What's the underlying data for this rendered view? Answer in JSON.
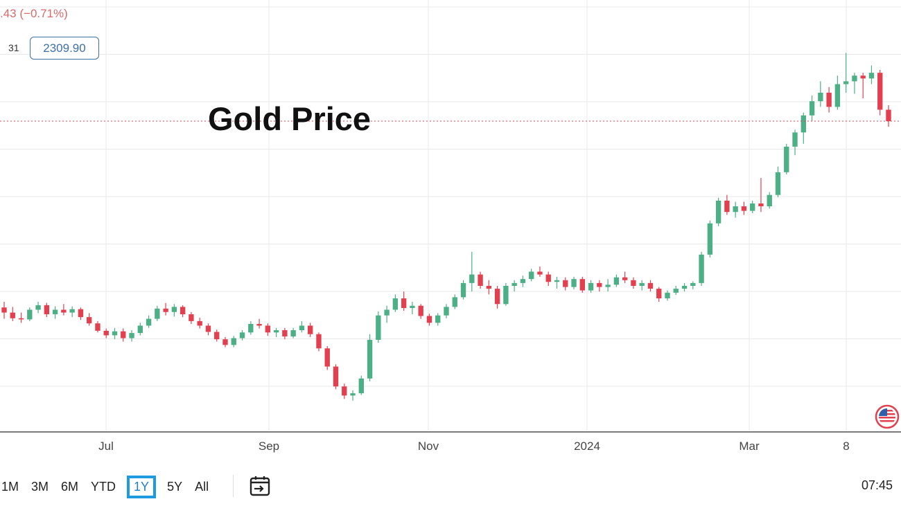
{
  "header": {
    "change": ".43 (−0.71%)",
    "ohlc_label": "31",
    "last_price": "2309.90"
  },
  "chart_data": {
    "type": "candlestick",
    "title": "Gold Price",
    "x_tick_labels": [
      "Jul",
      "Sep",
      "Nov",
      "2024",
      "Mar",
      "8"
    ],
    "last_price": 2309.9,
    "ylim": [
      1780,
      2450
    ],
    "grid": true,
    "candles": [
      {
        "o": 1982,
        "h": 1992,
        "l": 1962,
        "c": 1973
      },
      {
        "o": 1973,
        "h": 1983,
        "l": 1958,
        "c": 1963
      },
      {
        "o": 1963,
        "h": 1973,
        "l": 1955,
        "c": 1961
      },
      {
        "o": 1961,
        "h": 1982,
        "l": 1958,
        "c": 1978
      },
      {
        "o": 1978,
        "h": 1992,
        "l": 1972,
        "c": 1986
      },
      {
        "o": 1986,
        "h": 1990,
        "l": 1965,
        "c": 1970
      },
      {
        "o": 1970,
        "h": 1984,
        "l": 1962,
        "c": 1978
      },
      {
        "o": 1978,
        "h": 1988,
        "l": 1968,
        "c": 1973
      },
      {
        "o": 1973,
        "h": 1984,
        "l": 1965,
        "c": 1979
      },
      {
        "o": 1979,
        "h": 1982,
        "l": 1960,
        "c": 1965
      },
      {
        "o": 1965,
        "h": 1972,
        "l": 1950,
        "c": 1954
      },
      {
        "o": 1954,
        "h": 1958,
        "l": 1938,
        "c": 1941
      },
      {
        "o": 1941,
        "h": 1945,
        "l": 1928,
        "c": 1933
      },
      {
        "o": 1933,
        "h": 1946,
        "l": 1926,
        "c": 1940
      },
      {
        "o": 1940,
        "h": 1945,
        "l": 1922,
        "c": 1928
      },
      {
        "o": 1928,
        "h": 1942,
        "l": 1922,
        "c": 1937
      },
      {
        "o": 1937,
        "h": 1955,
        "l": 1933,
        "c": 1950
      },
      {
        "o": 1950,
        "h": 1968,
        "l": 1946,
        "c": 1962
      },
      {
        "o": 1962,
        "h": 1985,
        "l": 1958,
        "c": 1980
      },
      {
        "o": 1980,
        "h": 1990,
        "l": 1968,
        "c": 1974
      },
      {
        "o": 1974,
        "h": 1988,
        "l": 1966,
        "c": 1983
      },
      {
        "o": 1983,
        "h": 1986,
        "l": 1965,
        "c": 1970
      },
      {
        "o": 1970,
        "h": 1974,
        "l": 1953,
        "c": 1958
      },
      {
        "o": 1958,
        "h": 1964,
        "l": 1945,
        "c": 1950
      },
      {
        "o": 1950,
        "h": 1954,
        "l": 1933,
        "c": 1939
      },
      {
        "o": 1939,
        "h": 1943,
        "l": 1922,
        "c": 1926
      },
      {
        "o": 1926,
        "h": 1930,
        "l": 1912,
        "c": 1916
      },
      {
        "o": 1916,
        "h": 1932,
        "l": 1912,
        "c": 1928
      },
      {
        "o": 1928,
        "h": 1942,
        "l": 1924,
        "c": 1938
      },
      {
        "o": 1938,
        "h": 1958,
        "l": 1934,
        "c": 1953
      },
      {
        "o": 1953,
        "h": 1962,
        "l": 1945,
        "c": 1950
      },
      {
        "o": 1950,
        "h": 1954,
        "l": 1932,
        "c": 1938
      },
      {
        "o": 1938,
        "h": 1946,
        "l": 1930,
        "c": 1942
      },
      {
        "o": 1942,
        "h": 1946,
        "l": 1926,
        "c": 1931
      },
      {
        "o": 1931,
        "h": 1946,
        "l": 1928,
        "c": 1942
      },
      {
        "o": 1942,
        "h": 1958,
        "l": 1938,
        "c": 1950
      },
      {
        "o": 1950,
        "h": 1955,
        "l": 1930,
        "c": 1935
      },
      {
        "o": 1935,
        "h": 1938,
        "l": 1905,
        "c": 1910
      },
      {
        "o": 1910,
        "h": 1914,
        "l": 1872,
        "c": 1878
      },
      {
        "o": 1878,
        "h": 1882,
        "l": 1838,
        "c": 1843
      },
      {
        "o": 1843,
        "h": 1848,
        "l": 1821,
        "c": 1827
      },
      {
        "o": 1827,
        "h": 1836,
        "l": 1818,
        "c": 1831
      },
      {
        "o": 1831,
        "h": 1862,
        "l": 1828,
        "c": 1857
      },
      {
        "o": 1857,
        "h": 1935,
        "l": 1852,
        "c": 1925
      },
      {
        "o": 1925,
        "h": 1975,
        "l": 1920,
        "c": 1968
      },
      {
        "o": 1968,
        "h": 1985,
        "l": 1955,
        "c": 1978
      },
      {
        "o": 1978,
        "h": 2005,
        "l": 1974,
        "c": 1998
      },
      {
        "o": 1998,
        "h": 2010,
        "l": 1976,
        "c": 1981
      },
      {
        "o": 1981,
        "h": 1992,
        "l": 1970,
        "c": 1985
      },
      {
        "o": 1985,
        "h": 1988,
        "l": 1962,
        "c": 1967
      },
      {
        "o": 1967,
        "h": 1971,
        "l": 1950,
        "c": 1955
      },
      {
        "o": 1955,
        "h": 1972,
        "l": 1950,
        "c": 1968
      },
      {
        "o": 1968,
        "h": 1988,
        "l": 1963,
        "c": 1983
      },
      {
        "o": 1983,
        "h": 2005,
        "l": 1979,
        "c": 2000
      },
      {
        "o": 2000,
        "h": 2030,
        "l": 1996,
        "c": 2025
      },
      {
        "o": 2025,
        "h": 2080,
        "l": 2010,
        "c": 2040
      },
      {
        "o": 2040,
        "h": 2045,
        "l": 2015,
        "c": 2020
      },
      {
        "o": 2020,
        "h": 2030,
        "l": 2005,
        "c": 2015
      },
      {
        "o": 2015,
        "h": 2020,
        "l": 1980,
        "c": 1988
      },
      {
        "o": 1988,
        "h": 2025,
        "l": 1985,
        "c": 2020
      },
      {
        "o": 2020,
        "h": 2030,
        "l": 2010,
        "c": 2025
      },
      {
        "o": 2025,
        "h": 2038,
        "l": 2018,
        "c": 2032
      },
      {
        "o": 2032,
        "h": 2050,
        "l": 2028,
        "c": 2045
      },
      {
        "o": 2045,
        "h": 2054,
        "l": 2036,
        "c": 2040
      },
      {
        "o": 2040,
        "h": 2045,
        "l": 2020,
        "c": 2027
      },
      {
        "o": 2027,
        "h": 2036,
        "l": 2015,
        "c": 2030
      },
      {
        "o": 2030,
        "h": 2035,
        "l": 2012,
        "c": 2018
      },
      {
        "o": 2018,
        "h": 2036,
        "l": 2014,
        "c": 2032
      },
      {
        "o": 2032,
        "h": 2036,
        "l": 2008,
        "c": 2012
      },
      {
        "o": 2012,
        "h": 2030,
        "l": 2008,
        "c": 2025
      },
      {
        "o": 2025,
        "h": 2030,
        "l": 2010,
        "c": 2018
      },
      {
        "o": 2018,
        "h": 2032,
        "l": 2010,
        "c": 2022
      },
      {
        "o": 2022,
        "h": 2040,
        "l": 2018,
        "c": 2035
      },
      {
        "o": 2035,
        "h": 2045,
        "l": 2025,
        "c": 2030
      },
      {
        "o": 2030,
        "h": 2035,
        "l": 2015,
        "c": 2020
      },
      {
        "o": 2020,
        "h": 2030,
        "l": 2012,
        "c": 2025
      },
      {
        "o": 2025,
        "h": 2030,
        "l": 2010,
        "c": 2015
      },
      {
        "o": 2015,
        "h": 2018,
        "l": 1992,
        "c": 1998
      },
      {
        "o": 1998,
        "h": 2012,
        "l": 1994,
        "c": 2008
      },
      {
        "o": 2008,
        "h": 2020,
        "l": 2004,
        "c": 2015
      },
      {
        "o": 2015,
        "h": 2025,
        "l": 2010,
        "c": 2020
      },
      {
        "o": 2020,
        "h": 2028,
        "l": 2014,
        "c": 2025
      },
      {
        "o": 2025,
        "h": 2080,
        "l": 2020,
        "c": 2075
      },
      {
        "o": 2075,
        "h": 2135,
        "l": 2070,
        "c": 2130
      },
      {
        "o": 2130,
        "h": 2175,
        "l": 2125,
        "c": 2170
      },
      {
        "o": 2170,
        "h": 2180,
        "l": 2145,
        "c": 2150
      },
      {
        "o": 2150,
        "h": 2168,
        "l": 2140,
        "c": 2160
      },
      {
        "o": 2160,
        "h": 2168,
        "l": 2145,
        "c": 2152
      },
      {
        "o": 2152,
        "h": 2170,
        "l": 2148,
        "c": 2165
      },
      {
        "o": 2165,
        "h": 2210,
        "l": 2150,
        "c": 2160
      },
      {
        "o": 2160,
        "h": 2185,
        "l": 2156,
        "c": 2180
      },
      {
        "o": 2180,
        "h": 2230,
        "l": 2176,
        "c": 2220
      },
      {
        "o": 2220,
        "h": 2270,
        "l": 2216,
        "c": 2265
      },
      {
        "o": 2265,
        "h": 2295,
        "l": 2250,
        "c": 2290
      },
      {
        "o": 2290,
        "h": 2325,
        "l": 2270,
        "c": 2320
      },
      {
        "o": 2320,
        "h": 2355,
        "l": 2310,
        "c": 2345
      },
      {
        "o": 2345,
        "h": 2380,
        "l": 2335,
        "c": 2360
      },
      {
        "o": 2360,
        "h": 2370,
        "l": 2325,
        "c": 2335
      },
      {
        "o": 2335,
        "h": 2390,
        "l": 2330,
        "c": 2375
      },
      {
        "o": 2375,
        "h": 2430,
        "l": 2360,
        "c": 2380
      },
      {
        "o": 2380,
        "h": 2395,
        "l": 2358,
        "c": 2390
      },
      {
        "o": 2390,
        "h": 2395,
        "l": 2350,
        "c": 2385
      },
      {
        "o": 2385,
        "h": 2408,
        "l": 2375,
        "c": 2395
      },
      {
        "o": 2395,
        "h": 2400,
        "l": 2320,
        "c": 2330
      },
      {
        "o": 2330,
        "h": 2338,
        "l": 2300,
        "c": 2309.9
      }
    ]
  },
  "range_buttons": [
    "1M",
    "3M",
    "6M",
    "YTD",
    "1Y",
    "5Y",
    "All"
  ],
  "active_range": "1Y",
  "clock": "07:45",
  "colors": {
    "up": "#4caf86",
    "down": "#e2404f",
    "grid": "#e8e8e8",
    "price_line": "#e2404f",
    "active": "#1e9be0"
  },
  "icons": {
    "calendar": "calendar-arrow-icon",
    "flag": "us-flag-icon"
  }
}
